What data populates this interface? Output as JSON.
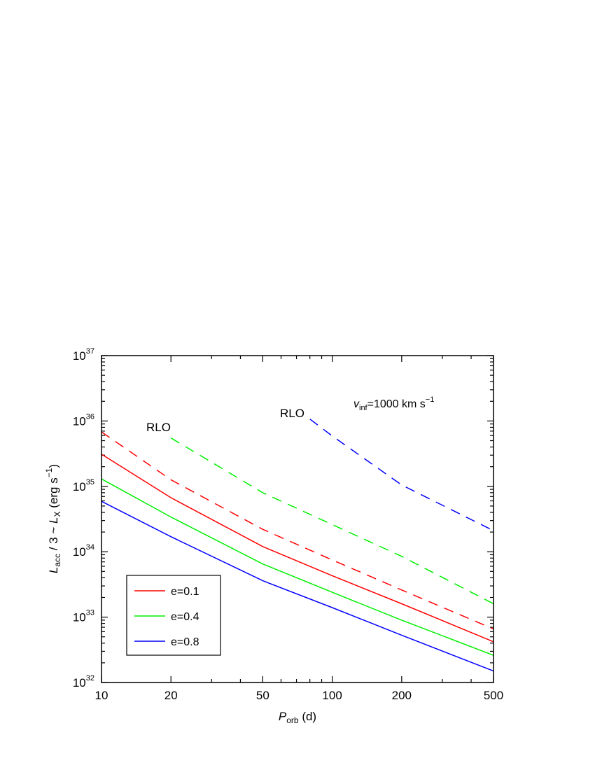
{
  "chart_data": {
    "type": "line",
    "xlabel": {
      "main": "P",
      "sub": "orb",
      "rest": " (d)"
    },
    "ylabel": {
      "l1": "L",
      "s1": "acc",
      "mid": " / 3 ~ ",
      "l2": "L",
      "s2": "X",
      "rest": " (erg s",
      "sup": "−1",
      "end": ")"
    },
    "x_scale": "log",
    "y_scale": "log",
    "xlim": [
      10,
      500
    ],
    "ylim": [
      1e+32,
      1e+37
    ],
    "x_ticks": [
      "10",
      "20",
      "50",
      "100",
      "200",
      "500"
    ],
    "y_ticks": [
      {
        "base": "10",
        "exp": "32"
      },
      {
        "base": "10",
        "exp": "33"
      },
      {
        "base": "10",
        "exp": "34"
      },
      {
        "base": "10",
        "exp": "35"
      },
      {
        "base": "10",
        "exp": "36"
      },
      {
        "base": "10",
        "exp": "37"
      }
    ],
    "grid": false,
    "legend_position": "bottom-left",
    "series": [
      {
        "name": "e=0.1",
        "color": "#ff0000",
        "dash": "solid",
        "x": [
          10,
          20,
          50,
          100,
          200,
          500
        ],
        "y": [
          3.1e+35,
          6.7e+34,
          1.2e+34,
          4.3e+33,
          1.6e+33,
          4.2e+32
        ]
      },
      {
        "name": "e=0.4",
        "color": "#00ee00",
        "dash": "solid",
        "x": [
          10,
          20,
          50,
          100,
          200,
          500
        ],
        "y": [
          1.3e+35,
          3.4e+34,
          6.5e+33,
          2.4e+33,
          9e+32,
          2.6e+32
        ]
      },
      {
        "name": "e=0.8",
        "color": "#0000ff",
        "dash": "solid",
        "x": [
          10,
          20,
          50,
          100,
          200,
          500
        ],
        "y": [
          5.9e+34,
          1.7e+34,
          3.6e+33,
          1.4e+33,
          5.3e+32,
          1.5e+32
        ]
      },
      {
        "color": "#ff0000",
        "dash": "dashed",
        "x": [
          10,
          20,
          50,
          100,
          200,
          500
        ],
        "y": [
          6.8e+35,
          1.26e+35,
          2.2e+34,
          7.5e+33,
          2.6e+33,
          6.6e+32
        ]
      },
      {
        "color": "#00ee00",
        "dash": "dashed",
        "x": [
          20,
          50,
          100,
          200,
          500
        ],
        "y": [
          5.5e+35,
          8e+34,
          2.6e+34,
          8.5e+33,
          1.6e+33
        ]
      },
      {
        "color": "#0000ff",
        "dash": "dashed",
        "x": [
          80,
          100,
          200,
          500
        ],
        "y": [
          1.07e+36,
          5.9e+35,
          1.05e+35,
          2.1e+34
        ]
      }
    ],
    "legend": [
      "e=0.1",
      "e=0.4",
      "e=0.8"
    ],
    "annotations": {
      "rlo_1": "RLO",
      "rlo_2": "RLO",
      "vinf": {
        "v": "v",
        "sub": "inf",
        "text": "=1000 km s",
        "sup": "−1"
      }
    }
  }
}
